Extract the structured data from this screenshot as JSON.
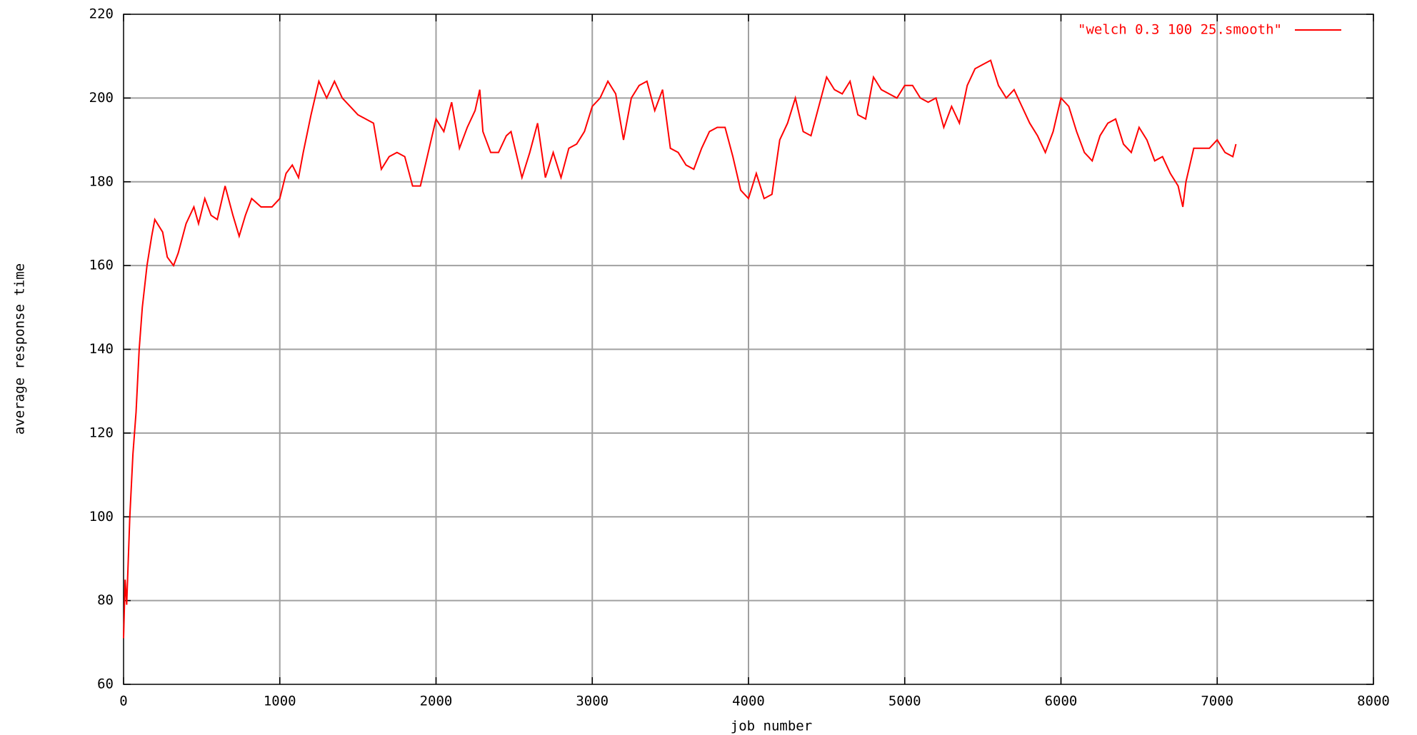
{
  "chart_data": {
    "type": "line",
    "xlabel": "job number",
    "ylabel": "average response time",
    "xlim": [
      0,
      8000
    ],
    "xticks": [
      0,
      1000,
      2000,
      3000,
      4000,
      5000,
      6000,
      7000,
      8000
    ],
    "ylim": [
      60,
      220
    ],
    "yticks": [
      60,
      80,
      100,
      120,
      140,
      160,
      180,
      200,
      220
    ],
    "grid": true,
    "legend": "upper right",
    "x": [
      0,
      10,
      20,
      40,
      60,
      80,
      100,
      120,
      150,
      180,
      200,
      250,
      280,
      320,
      350,
      400,
      450,
      480,
      520,
      560,
      600,
      650,
      700,
      740,
      780,
      820,
      880,
      950,
      1000,
      1040,
      1080,
      1120,
      1150,
      1200,
      1250,
      1300,
      1350,
      1400,
      1450,
      1500,
      1550,
      1600,
      1650,
      1700,
      1750,
      1800,
      1850,
      1900,
      1950,
      2000,
      2050,
      2100,
      2150,
      2200,
      2250,
      2280,
      2300,
      2350,
      2400,
      2450,
      2480,
      2550,
      2600,
      2650,
      2700,
      2750,
      2800,
      2850,
      2900,
      2950,
      3000,
      3050,
      3100,
      3150,
      3200,
      3250,
      3300,
      3350,
      3400,
      3450,
      3500,
      3550,
      3600,
      3650,
      3700,
      3750,
      3800,
      3850,
      3900,
      3950,
      4000,
      4050,
      4100,
      4150,
      4200,
      4250,
      4300,
      4350,
      4400,
      4450,
      4500,
      4550,
      4600,
      4650,
      4700,
      4750,
      4800,
      4850,
      4900,
      4950,
      5000,
      5050,
      5100,
      5150,
      5200,
      5250,
      5300,
      5350,
      5400,
      5450,
      5500,
      5550,
      5600,
      5650,
      5700,
      5750,
      5800,
      5850,
      5900,
      5950,
      6000,
      6050,
      6100,
      6150,
      6200,
      6250,
      6300,
      6350,
      6400,
      6450,
      6500,
      6550,
      6600,
      6650,
      6700,
      6750,
      6780,
      6800,
      6850,
      6900,
      6950,
      7000,
      7050,
      7100,
      7120
    ],
    "series": [
      {
        "name": "\"welch 0.3 100 25.smooth\"",
        "color": "#ff0000",
        "values": [
          71,
          85,
          79,
          100,
          115,
          125,
          140,
          150,
          160,
          167,
          171,
          168,
          162,
          160,
          163,
          170,
          174,
          170,
          176,
          172,
          171,
          179,
          172,
          167,
          172,
          176,
          174,
          174,
          176,
          182,
          184,
          181,
          187,
          196,
          204,
          200,
          204,
          200,
          198,
          196,
          195,
          194,
          183,
          186,
          187,
          186,
          179,
          179,
          187,
          195,
          192,
          199,
          188,
          193,
          197,
          202,
          192,
          187,
          187,
          191,
          192,
          181,
          187,
          194,
          181,
          187,
          181,
          188,
          189,
          192,
          198,
          200,
          204,
          201,
          190,
          200,
          203,
          204,
          197,
          202,
          188,
          187,
          184,
          183,
          188,
          192,
          193,
          193,
          186,
          178,
          176,
          182,
          176,
          177,
          190,
          194,
          200,
          192,
          191,
          198,
          205,
          202,
          201,
          204,
          196,
          195,
          205,
          202,
          201,
          200,
          203,
          203,
          200,
          199,
          200,
          193,
          198,
          194,
          203,
          207,
          208,
          209,
          203,
          200,
          202,
          198,
          194,
          191,
          187,
          192,
          200,
          198,
          192,
          187,
          185,
          191,
          194,
          195,
          189,
          187,
          193,
          190,
          185,
          186,
          182,
          179,
          174,
          180,
          188,
          188,
          188,
          190,
          187,
          186,
          189
        ]
      }
    ]
  }
}
